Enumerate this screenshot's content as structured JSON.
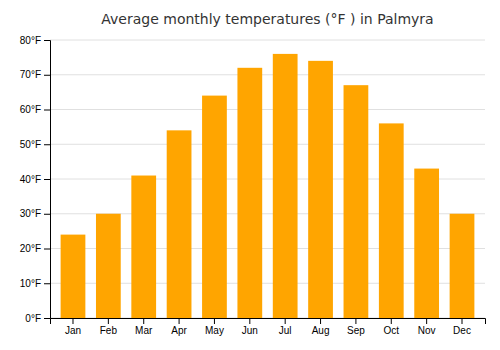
{
  "chart_data": {
    "type": "bar",
    "title": "Average monthly temperatures (°F ) in Palmyra",
    "categories": [
      "Jan",
      "Feb",
      "Mar",
      "Apr",
      "May",
      "Jun",
      "Jul",
      "Aug",
      "Sep",
      "Oct",
      "Nov",
      "Dec"
    ],
    "values": [
      24,
      30,
      41,
      54,
      64,
      72,
      76,
      74,
      67,
      56,
      43,
      30
    ],
    "color": "#FFA500",
    "ylim": [
      0,
      80
    ],
    "yticks": [
      {
        "value": 0,
        "label": "0°F"
      },
      {
        "value": 10,
        "label": "10°F"
      },
      {
        "value": 20,
        "label": "20°F"
      },
      {
        "value": 30,
        "label": "30°F"
      },
      {
        "value": 40,
        "label": "40°F"
      },
      {
        "value": 50,
        "label": "50°F"
      },
      {
        "value": 60,
        "label": "60°F"
      },
      {
        "value": 70,
        "label": "70°F"
      },
      {
        "value": 80,
        "label": "80°F"
      }
    ],
    "grid": true
  }
}
